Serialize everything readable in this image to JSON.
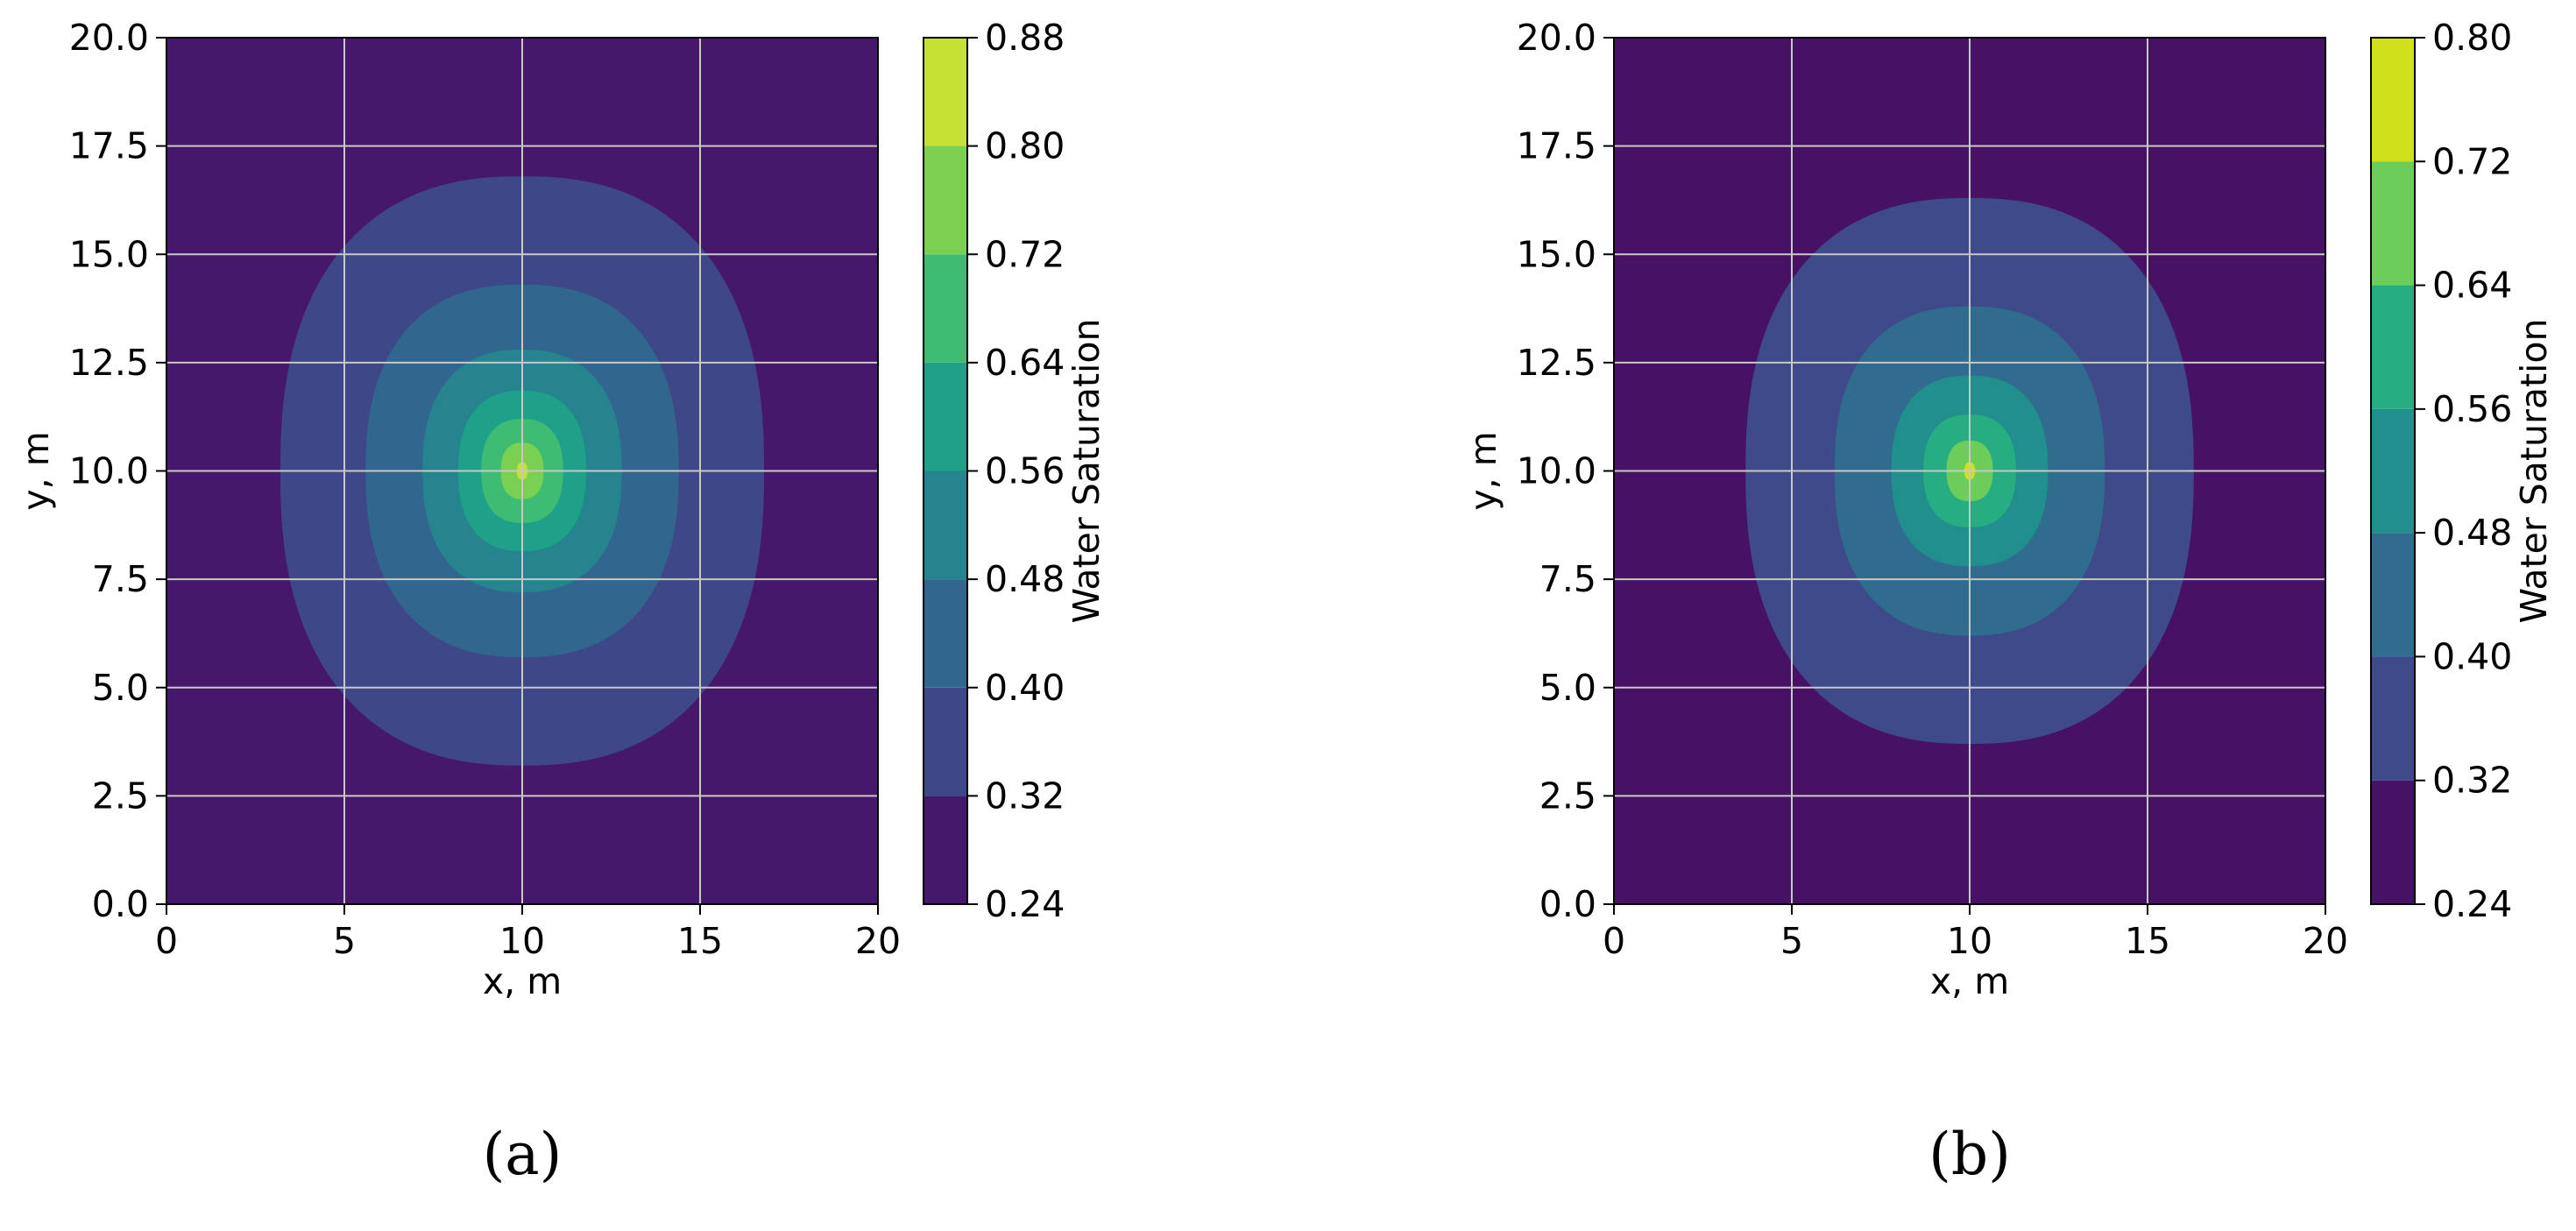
{
  "chart_data": [
    {
      "type": "contour",
      "panel_label": "(a)",
      "xlabel": "x, m",
      "ylabel": "y, m",
      "xlim": [
        0,
        20
      ],
      "ylim": [
        0,
        20
      ],
      "x_ticks": [
        "0",
        "5",
        "10",
        "15",
        "20"
      ],
      "y_ticks": [
        "0.0",
        "2.5",
        "5.0",
        "7.5",
        "10.0",
        "12.5",
        "15.0",
        "17.5",
        "20.0"
      ],
      "grid": true,
      "colormap": "viridis",
      "colorbar": {
        "label": "Water Saturation",
        "ticks": [
          "0.24",
          "0.32",
          "0.40",
          "0.48",
          "0.56",
          "0.64",
          "0.72",
          "0.80",
          "0.88"
        ],
        "levels": [
          0.24,
          0.32,
          0.4,
          0.48,
          0.56,
          0.64,
          0.72,
          0.8,
          0.88
        ],
        "colors": [
          "#46186b",
          "#3e4788",
          "#31678e",
          "#25848e",
          "#1fa088",
          "#3fbc73",
          "#7ad151",
          "#c6e133"
        ]
      },
      "contours": [
        {
          "level": 0.32,
          "center": [
            10,
            10
          ],
          "half_width_x": 6.8,
          "half_width_y": 6.8
        },
        {
          "level": 0.4,
          "center": [
            10,
            10
          ],
          "half_width_x": 4.4,
          "half_width_y": 4.3
        },
        {
          "level": 0.48,
          "center": [
            10,
            10
          ],
          "half_width_x": 2.8,
          "half_width_y": 2.8
        },
        {
          "level": 0.56,
          "center": [
            10,
            10
          ],
          "half_width_x": 1.8,
          "half_width_y": 1.85
        },
        {
          "level": 0.64,
          "center": [
            10,
            10
          ],
          "half_width_x": 1.15,
          "half_width_y": 1.2
        },
        {
          "level": 0.72,
          "center": [
            10,
            10
          ],
          "half_width_x": 0.6,
          "half_width_y": 0.65
        },
        {
          "level": 0.8,
          "center": [
            10,
            10
          ],
          "half_width_x": 0.15,
          "half_width_y": 0.2
        }
      ]
    },
    {
      "type": "contour",
      "panel_label": "(b)",
      "xlabel": "x, m",
      "ylabel": "y, m",
      "xlim": [
        0,
        20
      ],
      "ylim": [
        0,
        20
      ],
      "x_ticks": [
        "0",
        "5",
        "10",
        "15",
        "20"
      ],
      "y_ticks": [
        "0.0",
        "2.5",
        "5.0",
        "7.5",
        "10.0",
        "12.5",
        "15.0",
        "17.5",
        "20.0"
      ],
      "grid": true,
      "colormap": "viridis",
      "colorbar": {
        "label": "Water Saturation",
        "ticks": [
          "0.24",
          "0.32",
          "0.40",
          "0.48",
          "0.56",
          "0.64",
          "0.72",
          "0.80"
        ],
        "levels": [
          0.24,
          0.32,
          0.4,
          0.48,
          0.56,
          0.64,
          0.72,
          0.8
        ],
        "colors": [
          "#471164",
          "#3e4a89",
          "#2f6c8e",
          "#218f8c",
          "#26ad81",
          "#6ccd5a",
          "#d0e11c"
        ]
      },
      "contours": [
        {
          "level": 0.32,
          "center": [
            10,
            10
          ],
          "half_width_x": 6.3,
          "half_width_y": 6.3
        },
        {
          "level": 0.4,
          "center": [
            10,
            10
          ],
          "half_width_x": 3.8,
          "half_width_y": 3.8
        },
        {
          "level": 0.48,
          "center": [
            10,
            10
          ],
          "half_width_x": 2.2,
          "half_width_y": 2.2
        },
        {
          "level": 0.56,
          "center": [
            10,
            10
          ],
          "half_width_x": 1.3,
          "half_width_y": 1.3
        },
        {
          "level": 0.64,
          "center": [
            10,
            10
          ],
          "half_width_x": 0.65,
          "half_width_y": 0.7
        },
        {
          "level": 0.72,
          "center": [
            10,
            10
          ],
          "half_width_x": 0.15,
          "half_width_y": 0.2
        }
      ]
    }
  ]
}
